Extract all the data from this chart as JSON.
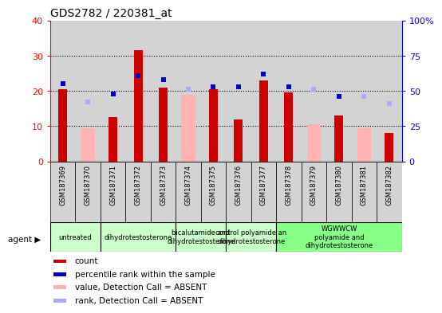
{
  "title": "GDS2782 / 220381_at",
  "samples": [
    "GSM187369",
    "GSM187370",
    "GSM187371",
    "GSM187372",
    "GSM187373",
    "GSM187374",
    "GSM187375",
    "GSM187376",
    "GSM187377",
    "GSM187378",
    "GSM187379",
    "GSM187380",
    "GSM187381",
    "GSM187382"
  ],
  "count": [
    20.5,
    null,
    12.5,
    31.5,
    21.0,
    null,
    20.5,
    12.0,
    23.0,
    19.5,
    null,
    13.0,
    null,
    8.0
  ],
  "percentile_rank": [
    55.0,
    null,
    48.0,
    61.0,
    58.0,
    null,
    53.0,
    53.0,
    62.0,
    53.0,
    null,
    46.0,
    null,
    null
  ],
  "value_absent": [
    null,
    9.5,
    null,
    null,
    null,
    19.0,
    null,
    null,
    null,
    null,
    10.5,
    null,
    9.5,
    null
  ],
  "rank_absent": [
    null,
    42.0,
    null,
    null,
    null,
    51.0,
    null,
    null,
    null,
    null,
    51.0,
    null,
    46.0,
    41.0
  ],
  "agent_groups": [
    {
      "label": "untreated",
      "start": 0,
      "end": 2,
      "color": "#ccffcc"
    },
    {
      "label": "dihydrotestosterone",
      "start": 2,
      "end": 5,
      "color": "#ccffcc"
    },
    {
      "label": "bicalutamide and\ndihydrotestosterone",
      "start": 5,
      "end": 7,
      "color": "#ccffcc"
    },
    {
      "label": "control polyamide an\ndihydrotestosterone",
      "start": 7,
      "end": 9,
      "color": "#ccffcc"
    },
    {
      "label": "WGWWCW\npolyamide and\ndihydrotestosterone",
      "start": 9,
      "end": 14,
      "color": "#88ff88"
    }
  ],
  "ylim_left": [
    0,
    40
  ],
  "ylim_right": [
    0,
    100
  ],
  "yticks_left": [
    0,
    10,
    20,
    30,
    40
  ],
  "yticks_right": [
    0,
    25,
    50,
    75,
    100
  ],
  "yticklabels_right": [
    "0",
    "25",
    "50",
    "75",
    "100%"
  ],
  "bar_color_count": "#cc0000",
  "bar_color_absent": "#ffb3b3",
  "dot_color_rank": "#0000cc",
  "dot_color_rank_absent": "#aaaaff",
  "legend_items": [
    {
      "color": "#cc0000",
      "label": "count",
      "marker": "s"
    },
    {
      "color": "#0000cc",
      "label": "percentile rank within the sample",
      "marker": "s"
    },
    {
      "color": "#ffb3b3",
      "label": "value, Detection Call = ABSENT",
      "marker": "s"
    },
    {
      "color": "#aaaaff",
      "label": "rank, Detection Call = ABSENT",
      "marker": "s"
    }
  ],
  "agent_label": "agent",
  "background_color": "#ffffff",
  "bar_width": 0.35,
  "absent_bar_width": 0.55
}
